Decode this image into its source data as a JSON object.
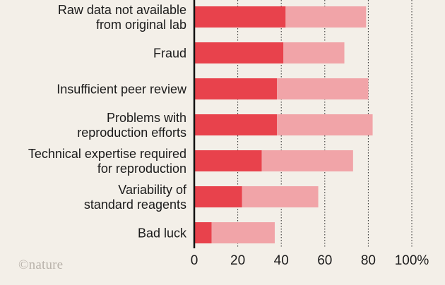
{
  "chart_data": {
    "type": "bar",
    "orientation": "horizontal",
    "stacked": true,
    "categories": [
      [
        "Raw data not available",
        "from original lab"
      ],
      [
        "Fraud"
      ],
      [
        "Insufficient peer review"
      ],
      [
        "Problems with",
        "reproduction efforts"
      ],
      [
        "Technical expertise required",
        "for reproduction"
      ],
      [
        "Variability of",
        "standard reagents"
      ],
      [
        "Bad luck"
      ]
    ],
    "series": [
      {
        "values": [
          42,
          41,
          38,
          38,
          31,
          22,
          8
        ],
        "color": "#e8424c"
      },
      {
        "values": [
          37,
          28,
          42,
          44,
          42,
          35,
          29
        ],
        "color": "#f1a4a8"
      }
    ],
    "xlim": [
      0,
      100
    ],
    "xticks": [
      "0",
      "20",
      "40",
      "60",
      "80",
      "100%"
    ],
    "grid": "vertical dotted",
    "legend": "none"
  },
  "watermark": {
    "text": "©nature",
    "color": "#b8b2aa"
  }
}
